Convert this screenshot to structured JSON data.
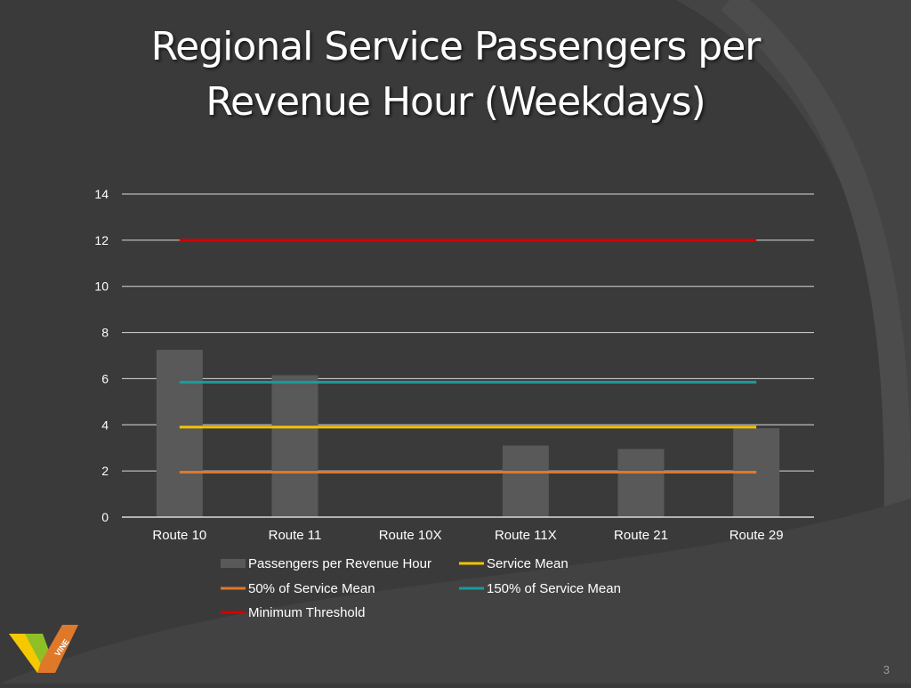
{
  "slide": {
    "title_line1": "Regional Service Passengers per",
    "title_line2": "Revenue Hour (Weekdays)",
    "page_number": "3",
    "logo_text": "VINE"
  },
  "colors": {
    "background": "#3a3a3a",
    "bar": "#595959",
    "service_mean": "#f2c400",
    "half_mean": "#e0782a",
    "one_and_half_mean": "#1a9c9c",
    "minimum_threshold": "#d40000",
    "grid": "#d9d9d9"
  },
  "chart_data": {
    "type": "bar",
    "categories": [
      "Route 10",
      "Route 11",
      "Route 10X",
      "Route 11X",
      "Route 21",
      "Route 29"
    ],
    "series": [
      {
        "name": "Passengers per Revenue Hour",
        "type": "bar",
        "values": [
          7.25,
          6.15,
          0,
          3.1,
          2.95,
          3.85
        ]
      },
      {
        "name": "Service Mean",
        "type": "line",
        "values": [
          3.9,
          3.9,
          3.9,
          3.9,
          3.9,
          3.9
        ]
      },
      {
        "name": "50% of Service Mean",
        "type": "line",
        "values": [
          1.95,
          1.95,
          1.95,
          1.95,
          1.95,
          1.95
        ]
      },
      {
        "name": "150% of Service Mean",
        "type": "line",
        "values": [
          5.85,
          5.85,
          5.85,
          5.85,
          5.85,
          5.85
        ]
      },
      {
        "name": "Minimum Threshold",
        "type": "line",
        "values": [
          12,
          12,
          12,
          12,
          12,
          12
        ]
      }
    ],
    "ylim": [
      0,
      14
    ],
    "yticks": [
      0,
      2,
      4,
      6,
      8,
      10,
      12,
      14
    ],
    "grid": true,
    "legend_position": "bottom"
  }
}
